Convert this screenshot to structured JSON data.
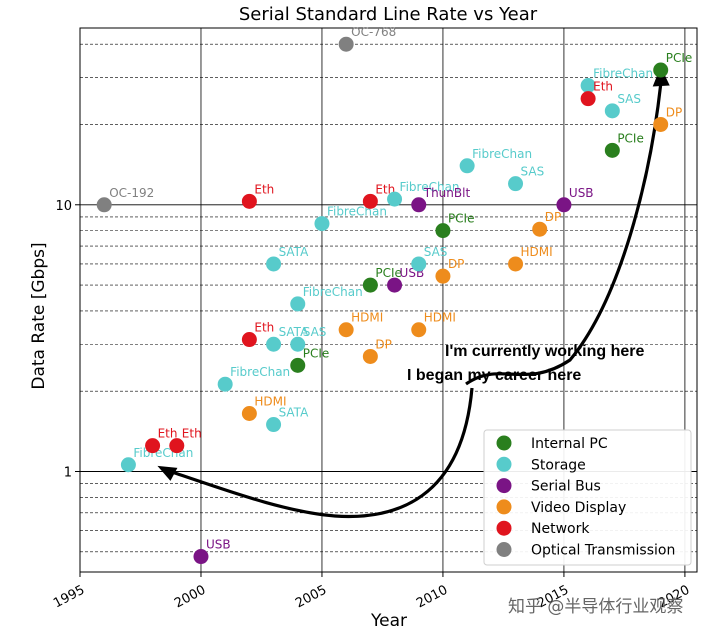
{
  "chart_data": {
    "type": "scatter",
    "title": "Serial Standard Line Rate vs Year",
    "xlabel": "Year",
    "ylabel": "Data Rate [Gbps]",
    "xlim": [
      1995,
      2020.5
    ],
    "ylim": [
      0.42,
      46
    ],
    "yscale": "log",
    "xticks": [
      1995,
      2000,
      2005,
      2010,
      2015,
      2020
    ],
    "xtick_labels": [
      "1995",
      "2000",
      "2005",
      "2010",
      "2015",
      "2020"
    ],
    "yticks": [
      1,
      10
    ],
    "ytick_labels": [
      "1",
      "10"
    ],
    "grid": true,
    "legend_position": "lower right",
    "categories": [
      {
        "key": "pc",
        "name": "Internal PC",
        "color": "#2a7f1e"
      },
      {
        "key": "st",
        "name": "Storage",
        "color": "#57cbcb"
      },
      {
        "key": "sb",
        "name": "Serial Bus",
        "color": "#7a1485"
      },
      {
        "key": "vd",
        "name": "Video Display",
        "color": "#ee8c1c"
      },
      {
        "key": "nw",
        "name": "Network",
        "color": "#e0141e"
      },
      {
        "key": "op",
        "name": "Optical Transmission",
        "color": "#808080"
      }
    ],
    "points": [
      {
        "x": 1996,
        "y": 10,
        "label": "OC-192",
        "cat": "op"
      },
      {
        "x": 2006,
        "y": 40,
        "label": "OC-768",
        "cat": "op"
      },
      {
        "x": 1997,
        "y": 1.06,
        "label": "FibreChan",
        "cat": "st"
      },
      {
        "x": 1998,
        "y": 1.25,
        "label": "Eth",
        "cat": "nw"
      },
      {
        "x": 1999,
        "y": 1.25,
        "label": "Eth",
        "cat": "nw"
      },
      {
        "x": 2000,
        "y": 0.48,
        "label": "USB",
        "cat": "sb"
      },
      {
        "x": 2001,
        "y": 2.125,
        "label": "FibreChan",
        "cat": "st"
      },
      {
        "x": 2002,
        "y": 10.3,
        "label": "Eth",
        "cat": "nw"
      },
      {
        "x": 2002,
        "y": 3.125,
        "label": "Eth",
        "cat": "nw"
      },
      {
        "x": 2002,
        "y": 1.65,
        "label": "HDMI",
        "cat": "vd"
      },
      {
        "x": 2003,
        "y": 6.0,
        "label": "SATA",
        "cat": "st"
      },
      {
        "x": 2003,
        "y": 3.0,
        "label": "SATA",
        "cat": "st"
      },
      {
        "x": 2003,
        "y": 1.5,
        "label": "SATA",
        "cat": "st"
      },
      {
        "x": 2004,
        "y": 4.25,
        "label": "FibreChan",
        "cat": "st"
      },
      {
        "x": 2004,
        "y": 3.0,
        "label": "SAS",
        "cat": "st"
      },
      {
        "x": 2004,
        "y": 2.5,
        "label": "PCIe",
        "cat": "pc"
      },
      {
        "x": 2005,
        "y": 8.5,
        "label": "FibreChan",
        "cat": "st"
      },
      {
        "x": 2006,
        "y": 3.4,
        "label": "HDMI",
        "cat": "vd"
      },
      {
        "x": 2007,
        "y": 10.3,
        "label": "Eth",
        "cat": "nw"
      },
      {
        "x": 2007,
        "y": 5.0,
        "label": "PCIe",
        "cat": "pc"
      },
      {
        "x": 2007,
        "y": 2.7,
        "label": "DP",
        "cat": "vd"
      },
      {
        "x": 2008,
        "y": 10.5,
        "label": "FibreChan",
        "cat": "st"
      },
      {
        "x": 2008,
        "y": 5.0,
        "label": "USB",
        "cat": "sb"
      },
      {
        "x": 2009,
        "y": 10.0,
        "label": "ThunBlt",
        "cat": "sb"
      },
      {
        "x": 2009,
        "y": 6.0,
        "label": "SAS",
        "cat": "st"
      },
      {
        "x": 2009,
        "y": 3.4,
        "label": "HDMI",
        "cat": "vd"
      },
      {
        "x": 2010,
        "y": 8.0,
        "label": "PCIe",
        "cat": "pc"
      },
      {
        "x": 2010,
        "y": 5.4,
        "label": "DP",
        "cat": "vd"
      },
      {
        "x": 2011,
        "y": 14.0,
        "label": "FibreChan",
        "cat": "st"
      },
      {
        "x": 2013,
        "y": 12.0,
        "label": "SAS",
        "cat": "st"
      },
      {
        "x": 2013,
        "y": 6.0,
        "label": "HDMI",
        "cat": "vd"
      },
      {
        "x": 2014,
        "y": 8.1,
        "label": "DP",
        "cat": "vd"
      },
      {
        "x": 2015,
        "y": 10.0,
        "label": "USB",
        "cat": "sb"
      },
      {
        "x": 2016,
        "y": 28.0,
        "label": "FibreChan",
        "cat": "st"
      },
      {
        "x": 2016,
        "y": 25.0,
        "label": "Eth",
        "cat": "nw"
      },
      {
        "x": 2017,
        "y": 22.5,
        "label": "SAS",
        "cat": "st"
      },
      {
        "x": 2017,
        "y": 16.0,
        "label": "PCIe",
        "cat": "pc"
      },
      {
        "x": 2019,
        "y": 32.0,
        "label": "PCIe",
        "cat": "pc"
      },
      {
        "x": 2019,
        "y": 20.0,
        "label": "DP",
        "cat": "vd"
      }
    ],
    "annotations": [
      {
        "text": "I'm currently working here",
        "target": [
          2019,
          33
        ]
      },
      {
        "text": "I began my career here",
        "target": [
          1998.2,
          1.05
        ]
      }
    ]
  },
  "watermark": "知乎 @半导体行业观察"
}
